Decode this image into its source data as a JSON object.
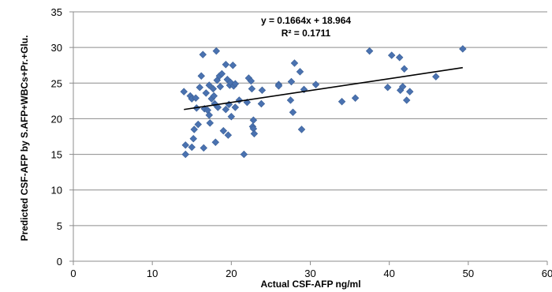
{
  "chart_data": {
    "type": "scatter",
    "xlabel": "Actual CSF-AFP ng/ml",
    "ylabel": "Predicted CSF-AFP by S.AFP+WBCs+Pr.+Glu.",
    "xlim": [
      0,
      60
    ],
    "ylim": [
      0,
      35
    ],
    "x_ticks": [
      0,
      10,
      20,
      30,
      40,
      50,
      60
    ],
    "y_ticks": [
      0,
      5,
      10,
      15,
      20,
      25,
      30,
      35
    ],
    "grid": "horizontal",
    "marker_color": "#4a72b0",
    "trendline": {
      "slope": 0.1664,
      "intercept": 18.964,
      "x_range": [
        14,
        49.3
      ],
      "equation_label": "y = 0.1664x + 18.964",
      "r2_label": "R² = 0.1711"
    },
    "points": [
      {
        "x": 14,
        "y": 23.8
      },
      {
        "x": 14.2,
        "y": 16.3
      },
      {
        "x": 14.2,
        "y": 15.0
      },
      {
        "x": 14.8,
        "y": 23.2
      },
      {
        "x": 15.0,
        "y": 22.8
      },
      {
        "x": 15.0,
        "y": 16.0
      },
      {
        "x": 15.2,
        "y": 17.2
      },
      {
        "x": 15.3,
        "y": 18.5
      },
      {
        "x": 15.5,
        "y": 22.9
      },
      {
        "x": 15.6,
        "y": 21.5
      },
      {
        "x": 15.8,
        "y": 19.2
      },
      {
        "x": 16.0,
        "y": 24.4
      },
      {
        "x": 16.2,
        "y": 26.0
      },
      {
        "x": 16.4,
        "y": 29.0
      },
      {
        "x": 16.5,
        "y": 15.9
      },
      {
        "x": 16.6,
        "y": 21.4
      },
      {
        "x": 16.8,
        "y": 23.6
      },
      {
        "x": 17.0,
        "y": 21.2
      },
      {
        "x": 17.2,
        "y": 24.7
      },
      {
        "x": 17.2,
        "y": 20.5
      },
      {
        "x": 17.3,
        "y": 19.4
      },
      {
        "x": 17.5,
        "y": 22.8
      },
      {
        "x": 17.7,
        "y": 24.2
      },
      {
        "x": 17.8,
        "y": 23.2
      },
      {
        "x": 17.9,
        "y": 22.1
      },
      {
        "x": 18.0,
        "y": 16.7
      },
      {
        "x": 18.1,
        "y": 29.5
      },
      {
        "x": 18.2,
        "y": 25.4
      },
      {
        "x": 18.3,
        "y": 21.6
      },
      {
        "x": 18.5,
        "y": 26.0
      },
      {
        "x": 18.6,
        "y": 24.5
      },
      {
        "x": 18.8,
        "y": 26.3
      },
      {
        "x": 19.0,
        "y": 18.3
      },
      {
        "x": 19.3,
        "y": 27.6
      },
      {
        "x": 19.3,
        "y": 21.3
      },
      {
        "x": 19.5,
        "y": 25.5
      },
      {
        "x": 19.6,
        "y": 17.7
      },
      {
        "x": 19.7,
        "y": 22.0
      },
      {
        "x": 19.8,
        "y": 24.7
      },
      {
        "x": 19.9,
        "y": 25.1
      },
      {
        "x": 20.0,
        "y": 20.3
      },
      {
        "x": 20.2,
        "y": 27.5
      },
      {
        "x": 20.3,
        "y": 24.6
      },
      {
        "x": 20.5,
        "y": 21.6
      },
      {
        "x": 20.5,
        "y": 24.9
      },
      {
        "x": 21.0,
        "y": 22.6
      },
      {
        "x": 21.6,
        "y": 15.0
      },
      {
        "x": 22.0,
        "y": 22.3
      },
      {
        "x": 22.2,
        "y": 25.7
      },
      {
        "x": 22.5,
        "y": 25.3
      },
      {
        "x": 22.6,
        "y": 24.2
      },
      {
        "x": 22.7,
        "y": 18.9
      },
      {
        "x": 22.8,
        "y": 18.6
      },
      {
        "x": 22.8,
        "y": 19.8
      },
      {
        "x": 22.9,
        "y": 17.9
      },
      {
        "x": 23.8,
        "y": 22.1
      },
      {
        "x": 23.9,
        "y": 24.0
      },
      {
        "x": 26.0,
        "y": 24.8
      },
      {
        "x": 26.0,
        "y": 24.6
      },
      {
        "x": 27.5,
        "y": 22.6
      },
      {
        "x": 27.6,
        "y": 25.2
      },
      {
        "x": 27.8,
        "y": 20.9
      },
      {
        "x": 28.0,
        "y": 27.8
      },
      {
        "x": 28.7,
        "y": 26.6
      },
      {
        "x": 28.9,
        "y": 18.5
      },
      {
        "x": 29.2,
        "y": 24.1
      },
      {
        "x": 30.7,
        "y": 24.8
      },
      {
        "x": 34.0,
        "y": 22.4
      },
      {
        "x": 35.7,
        "y": 22.9
      },
      {
        "x": 37.5,
        "y": 29.5
      },
      {
        "x": 39.8,
        "y": 24.4
      },
      {
        "x": 40.3,
        "y": 28.9
      },
      {
        "x": 41.3,
        "y": 28.6
      },
      {
        "x": 41.4,
        "y": 24.0
      },
      {
        "x": 41.7,
        "y": 24.5
      },
      {
        "x": 41.9,
        "y": 27.0
      },
      {
        "x": 42.2,
        "y": 22.6
      },
      {
        "x": 42.6,
        "y": 23.8
      },
      {
        "x": 45.9,
        "y": 25.9
      },
      {
        "x": 49.3,
        "y": 29.8
      }
    ]
  }
}
